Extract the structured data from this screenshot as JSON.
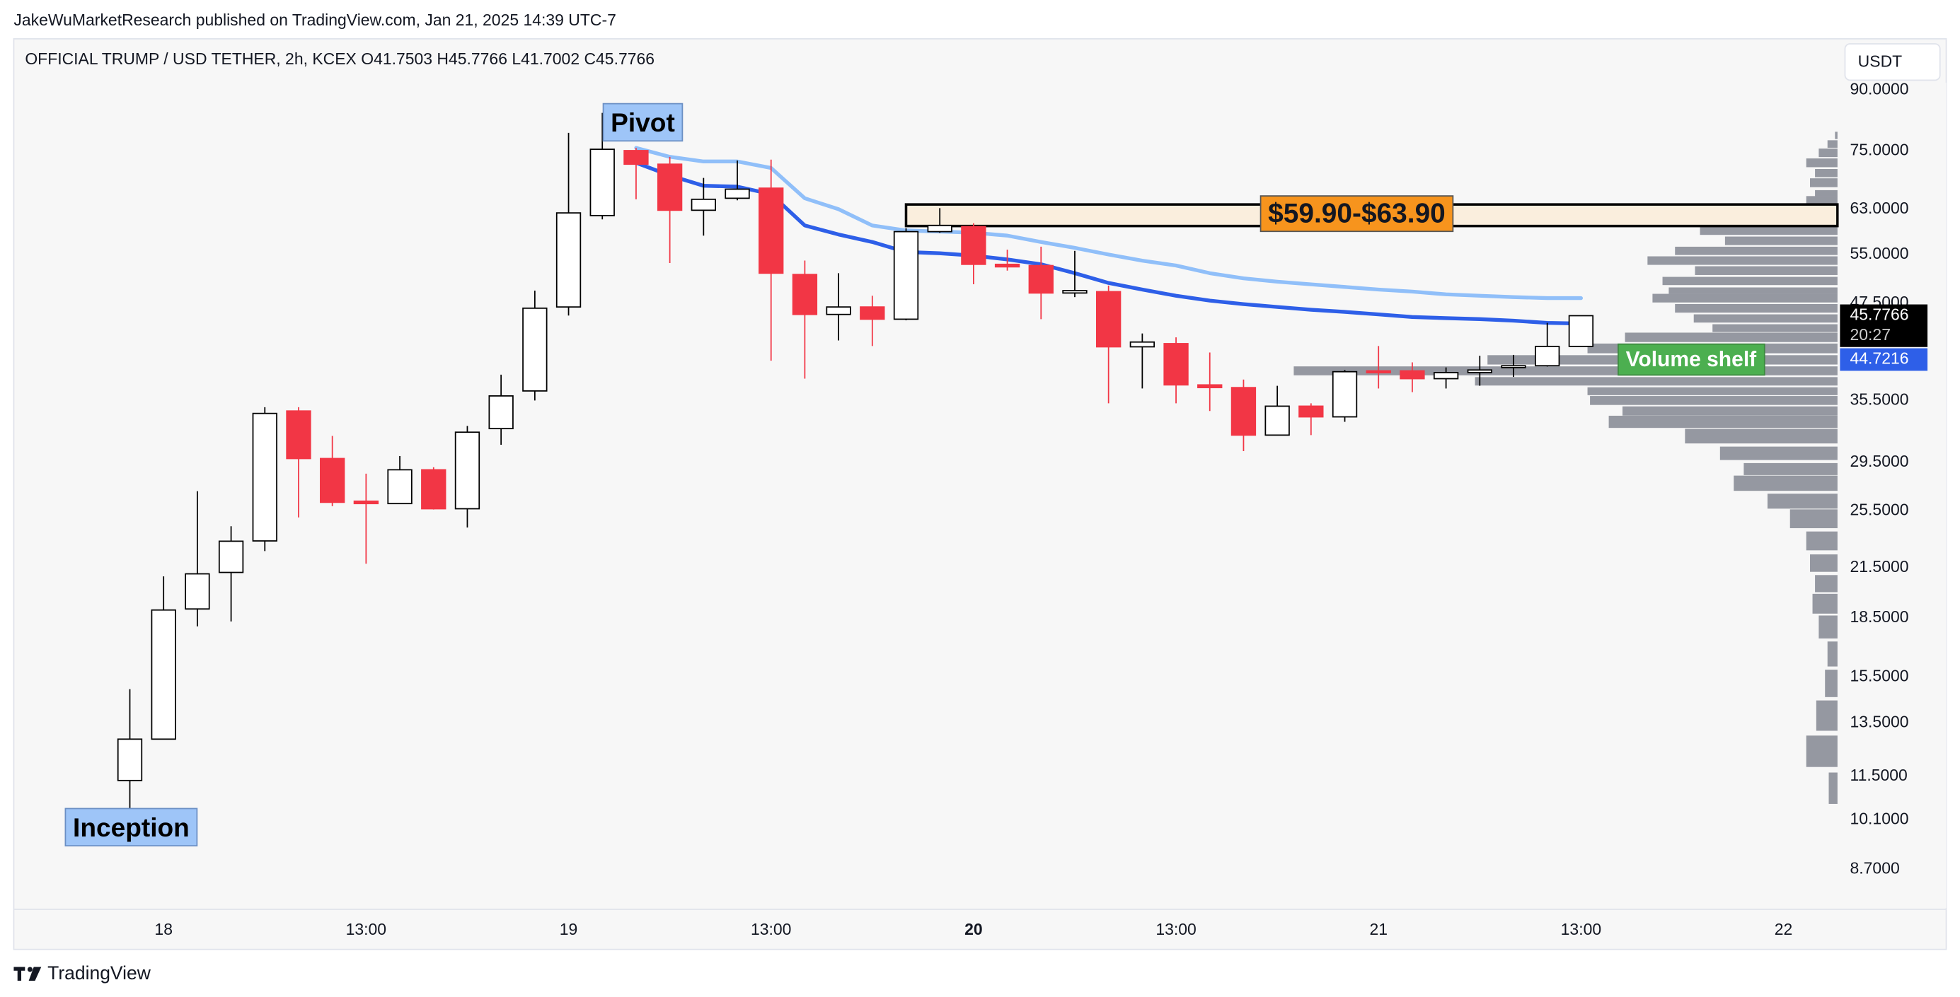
{
  "header": {
    "byline": "JakeWuMarketResearch published on TradingView.com, Jan 21, 2025 14:39 UTC-7",
    "footer_brand": "TradingView"
  },
  "chart_data": {
    "type": "candlestick",
    "title": "OFFICIAL TRUMP / USD TETHER, 2h, KCEX  O41.7503  H45.7766  L41.7002  C45.7766",
    "currency_button": "USDT",
    "log_scale": true,
    "x": [
      0,
      1,
      2,
      3,
      4,
      5,
      6,
      7,
      8,
      9,
      10,
      11,
      12,
      13,
      14,
      15,
      16,
      17,
      18,
      19,
      20,
      21,
      22,
      23,
      24,
      25,
      26,
      27,
      28,
      29,
      30,
      31,
      32,
      33,
      34,
      35,
      36,
      37,
      38,
      39,
      40,
      41,
      42,
      43
    ],
    "open": [
      11.36,
      12.86,
      19.0,
      21.2,
      23.3,
      34.4,
      29.83,
      26.25,
      26.06,
      28.84,
      25.66,
      32.63,
      36.53,
      46.99,
      61.8,
      75.1,
      72.1,
      62.8,
      65.1,
      67.1,
      51.8,
      45.95,
      46.99,
      45.3,
      58.9,
      59.8,
      53.4,
      53.2,
      49.0,
      49.2,
      41.7,
      42.1,
      37.2,
      36.9,
      32.0,
      34.9,
      33.8,
      38.8,
      38.8,
      37.9,
      38.6,
      39.3,
      39.4,
      41.7503
    ],
    "high": [
      14.94,
      20.95,
      27.05,
      24.35,
      34.79,
      34.79,
      31.92,
      28.51,
      30.05,
      29.06,
      32.89,
      38.36,
      49.35,
      79.2,
      84.1,
      75.7,
      73.7,
      69.2,
      72.9,
      73.1,
      54.0,
      52.0,
      48.6,
      59.5,
      63.2,
      60.4,
      55.8,
      56.3,
      55.6,
      50.1,
      43.4,
      42.9,
      41.0,
      37.8,
      37.1,
      35.2,
      38.9,
      41.8,
      39.8,
      39.2,
      40.6,
      40.7,
      44.8,
      45.7766
    ],
    "low": [
      10.34,
      12.86,
      18.03,
      18.3,
      22.6,
      25.0,
      25.86,
      21.76,
      26.06,
      25.6,
      24.26,
      31.09,
      35.5,
      45.8,
      61.1,
      64.9,
      53.6,
      58.2,
      64.7,
      40.0,
      37.9,
      42.5,
      41.8,
      45.15,
      58.7,
      50.3,
      52.4,
      45.3,
      48.4,
      35.2,
      36.8,
      35.2,
      34.4,
      30.5,
      32.0,
      32.0,
      33.3,
      36.8,
      36.4,
      36.8,
      37.1,
      38.1,
      39.3,
      41.7002
    ],
    "close": [
      12.86,
      18.94,
      21.11,
      23.28,
      34.15,
      29.83,
      26.16,
      26.06,
      28.84,
      25.66,
      32.28,
      35.99,
      46.82,
      62.3,
      75.4,
      72.1,
      62.8,
      64.9,
      66.9,
      52.0,
      45.95,
      46.99,
      45.3,
      58.9,
      60.0,
      53.4,
      53.0,
      49.0,
      49.35,
      41.7,
      42.3,
      37.2,
      36.9,
      32.0,
      34.9,
      33.8,
      38.7,
      38.6,
      37.9,
      38.6,
      38.9,
      39.4,
      41.75,
      45.7766
    ],
    "up_color": "#ffffff",
    "down_color": "#f23645",
    "lines": [
      {
        "color": "#90bff9",
        "values": [
          null,
          null,
          null,
          null,
          null,
          null,
          null,
          null,
          null,
          null,
          null,
          null,
          null,
          null,
          null,
          75.7,
          73.7,
          72.7,
          72.7,
          71.3,
          65.1,
          63.0,
          60.0,
          59.1,
          58.9,
          58.7,
          58.2,
          57.1,
          56.1,
          55.0,
          54.0,
          53.2,
          52.0,
          51.2,
          50.7,
          50.3,
          49.9,
          49.5,
          49.2,
          48.8,
          48.6,
          48.4,
          48.25,
          48.25
        ]
      },
      {
        "color": "#2e5fe8",
        "values": [
          null,
          null,
          null,
          null,
          null,
          null,
          null,
          null,
          null,
          null,
          null,
          null,
          null,
          null,
          null,
          72.4,
          69.7,
          67.6,
          67.4,
          65.9,
          60.0,
          58.4,
          57.1,
          55.4,
          55.2,
          54.8,
          54.2,
          53.4,
          52.0,
          50.5,
          49.5,
          48.6,
          47.9,
          47.4,
          46.99,
          46.6,
          46.3,
          45.95,
          45.6,
          45.45,
          45.3,
          45.1,
          44.8,
          44.7216
        ]
      }
    ],
    "volume_profile": {
      "color": "#9598a1",
      "highlight_color": "#c9b79b",
      "levels": [
        78.6,
        76.6,
        74.6,
        72.4,
        70.2,
        68.2,
        66.1,
        64.7,
        62.8,
        60.9,
        59.1,
        57.3,
        55.6,
        54.0,
        52.4,
        50.8,
        49.35,
        48.25,
        46.8,
        45.4,
        44.1,
        42.9,
        41.5,
        40.1,
        38.8,
        37.6,
        36.5,
        35.5,
        34.4,
        33.3,
        31.9,
        30.3,
        28.9,
        27.7,
        26.25,
        24.9,
        23.3,
        21.8,
        20.5,
        19.3,
        18.0,
        16.6,
        15.2,
        13.8,
        12.4,
        11.1
      ],
      "values": [
        2,
        8,
        15,
        25,
        18,
        22,
        18,
        25,
        60,
        70,
        110,
        90,
        130,
        152,
        114,
        140,
        135,
        148,
        130,
        115,
        100,
        170,
        200,
        280,
        435,
        290,
        200,
        198,
        172,
        183,
        122,
        94,
        75,
        83,
        56,
        38,
        25,
        22,
        18,
        20,
        15,
        8,
        10,
        17,
        25,
        7
      ]
    },
    "zone": {
      "label": "$59.90-$63.90",
      "low": 59.9,
      "high": 63.9,
      "x_start": 23,
      "fill": "#faeedd",
      "label_color": "#f7941d"
    },
    "annotations": [
      {
        "text": "Pivot",
        "x": 15.2,
        "y": 81.2,
        "color": "#9ec5f8"
      },
      {
        "text": "Inception",
        "x": 0.04,
        "y": 9.81,
        "color": "#9ec5f8"
      },
      {
        "text": "Volume shelf",
        "x": 46.26,
        "y": 40.0,
        "color": "#4caf50"
      }
    ],
    "price_labels": [
      {
        "value": 45.7766,
        "label": "45.7766",
        "color": "#000000"
      },
      {
        "value": 44.7216,
        "label": "44.7216",
        "color": "#2e5fe8"
      }
    ],
    "countdown": "20:27",
    "ylim": [
      7.72,
      105
    ],
    "yticks": [
      {
        "value": 90,
        "label": "90.0000"
      },
      {
        "value": 75,
        "label": "75.0000"
      },
      {
        "value": 63,
        "label": "63.0000"
      },
      {
        "value": 55,
        "label": "55.0000"
      },
      {
        "value": 47.5,
        "label": "47.5000"
      },
      {
        "value": 35.5,
        "label": "35.5000"
      },
      {
        "value": 29.5,
        "label": "29.5000"
      },
      {
        "value": 25.5,
        "label": "25.5000"
      },
      {
        "value": 21.5,
        "label": "21.5000"
      },
      {
        "value": 18.5,
        "label": "18.5000"
      },
      {
        "value": 15.5,
        "label": "15.5000"
      },
      {
        "value": 13.5,
        "label": "13.5000"
      },
      {
        "value": 11.5,
        "label": "11.5000"
      },
      {
        "value": 10.1,
        "label": "10.1000"
      },
      {
        "value": 8.7,
        "label": "8.7000"
      }
    ],
    "xlim": [
      -3.44,
      50.6
    ],
    "xticks": [
      {
        "value": 1,
        "label": "18"
      },
      {
        "value": 7,
        "label": "13:00"
      },
      {
        "value": 13,
        "label": "19"
      },
      {
        "value": 19,
        "label": "13:00"
      },
      {
        "value": 25,
        "label": "20"
      },
      {
        "value": 31,
        "label": "13:00"
      },
      {
        "value": 37,
        "label": "21"
      },
      {
        "value": 43,
        "label": "13:00"
      },
      {
        "value": 49,
        "label": "22"
      }
    ]
  }
}
